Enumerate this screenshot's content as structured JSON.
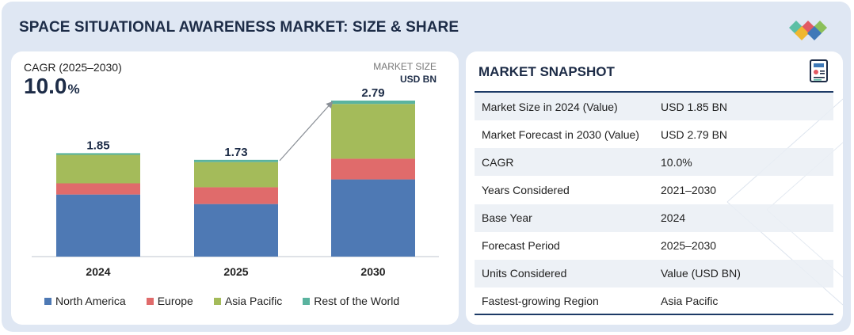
{
  "header": {
    "title": "SPACE SITUATIONAL AWARENESS MARKET: SIZE & SHARE",
    "logo_icon": "diamond-cluster-logo-icon"
  },
  "chart_panel": {
    "cagr_label": "CAGR (2025–2030)",
    "cagr_value": "10.0",
    "cagr_unit": "%",
    "market_size_label": "MARKET SIZE",
    "market_size_unit": "USD BN"
  },
  "chart_data": {
    "type": "bar",
    "stacked": true,
    "categories": [
      "2024",
      "2025",
      "2030"
    ],
    "totals": [
      1.85,
      1.73,
      2.79
    ],
    "total_labels": [
      "1.85",
      "1.73",
      "2.79"
    ],
    "series": [
      {
        "name": "North America",
        "color": "#4e79b4",
        "values": [
          1.11,
          0.94,
          1.38
        ]
      },
      {
        "name": "Europe",
        "color": "#e06b6b",
        "values": [
          0.2,
          0.3,
          0.37
        ]
      },
      {
        "name": "Asia Pacific",
        "color": "#a4bb5a",
        "values": [
          0.51,
          0.45,
          0.98
        ]
      },
      {
        "name": "Rest of the World",
        "color": "#5ab39f",
        "values": [
          0.03,
          0.04,
          0.06
        ]
      }
    ],
    "title": "",
    "xlabel": "",
    "ylabel": "",
    "ylim": [
      0,
      2.79
    ],
    "grid": false,
    "legend": "bottom",
    "annotation": "arrow from 2025 to 2030"
  },
  "snapshot": {
    "title": "MARKET SNAPSHOT",
    "icon": "report-document-icon",
    "rows": [
      {
        "label": "Market Size in 2024 (Value)",
        "value": "USD 1.85 BN"
      },
      {
        "label": "Market Forecast in 2030 (Value)",
        "value": "USD 2.79 BN"
      },
      {
        "label": "CAGR",
        "value": "10.0%"
      },
      {
        "label": "Years Considered",
        "value": "2021–2030"
      },
      {
        "label": "Base Year",
        "value": "2024"
      },
      {
        "label": "Forecast Period",
        "value": "2025–2030"
      },
      {
        "label": "Units Considered",
        "value": "Value (USD BN)"
      },
      {
        "label": "Fastest-growing Region",
        "value": "Asia Pacific"
      }
    ]
  }
}
